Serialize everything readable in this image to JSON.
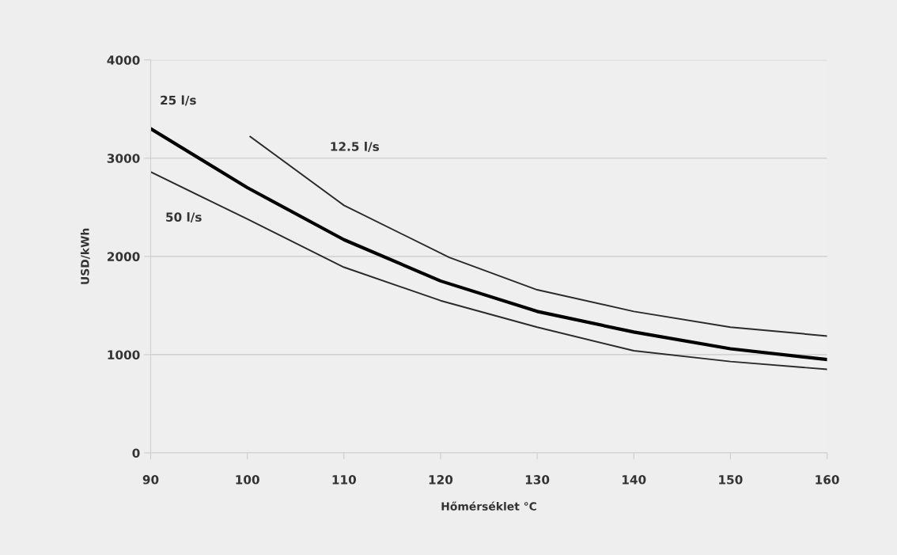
{
  "chart_data": {
    "type": "line",
    "xlabel": "Hőmérséklet °C",
    "ylabel": "USD/kWh",
    "xlim": [
      90,
      160
    ],
    "xticks": [
      90,
      100,
      110,
      120,
      130,
      140,
      150,
      160
    ],
    "ylim": [
      0,
      4000
    ],
    "yticks": [
      0,
      1000,
      2000,
      3000,
      4000
    ],
    "grid": "y",
    "marker": "none",
    "line_style": "solid",
    "series": [
      {
        "name": "12.5 l/s",
        "color": "#2a2a2a",
        "x": [
          100.3,
          110,
          120.9,
          130,
          140,
          150,
          160
        ],
        "values": [
          3220,
          2520,
          1990,
          1660,
          1440,
          1280,
          1190
        ]
      },
      {
        "name": "25 l/s",
        "color": "#000000",
        "x": [
          90,
          100,
          110,
          120,
          130,
          140,
          150,
          160
        ],
        "values": [
          3300,
          2700,
          2170,
          1750,
          1440,
          1230,
          1060,
          950
        ]
      },
      {
        "name": "50 l/s",
        "color": "#2a2a2a",
        "x": [
          90,
          100,
          110,
          120,
          130,
          140,
          150,
          160
        ],
        "values": [
          2860,
          2380,
          1890,
          1550,
          1280,
          1040,
          930,
          850
        ]
      }
    ]
  }
}
